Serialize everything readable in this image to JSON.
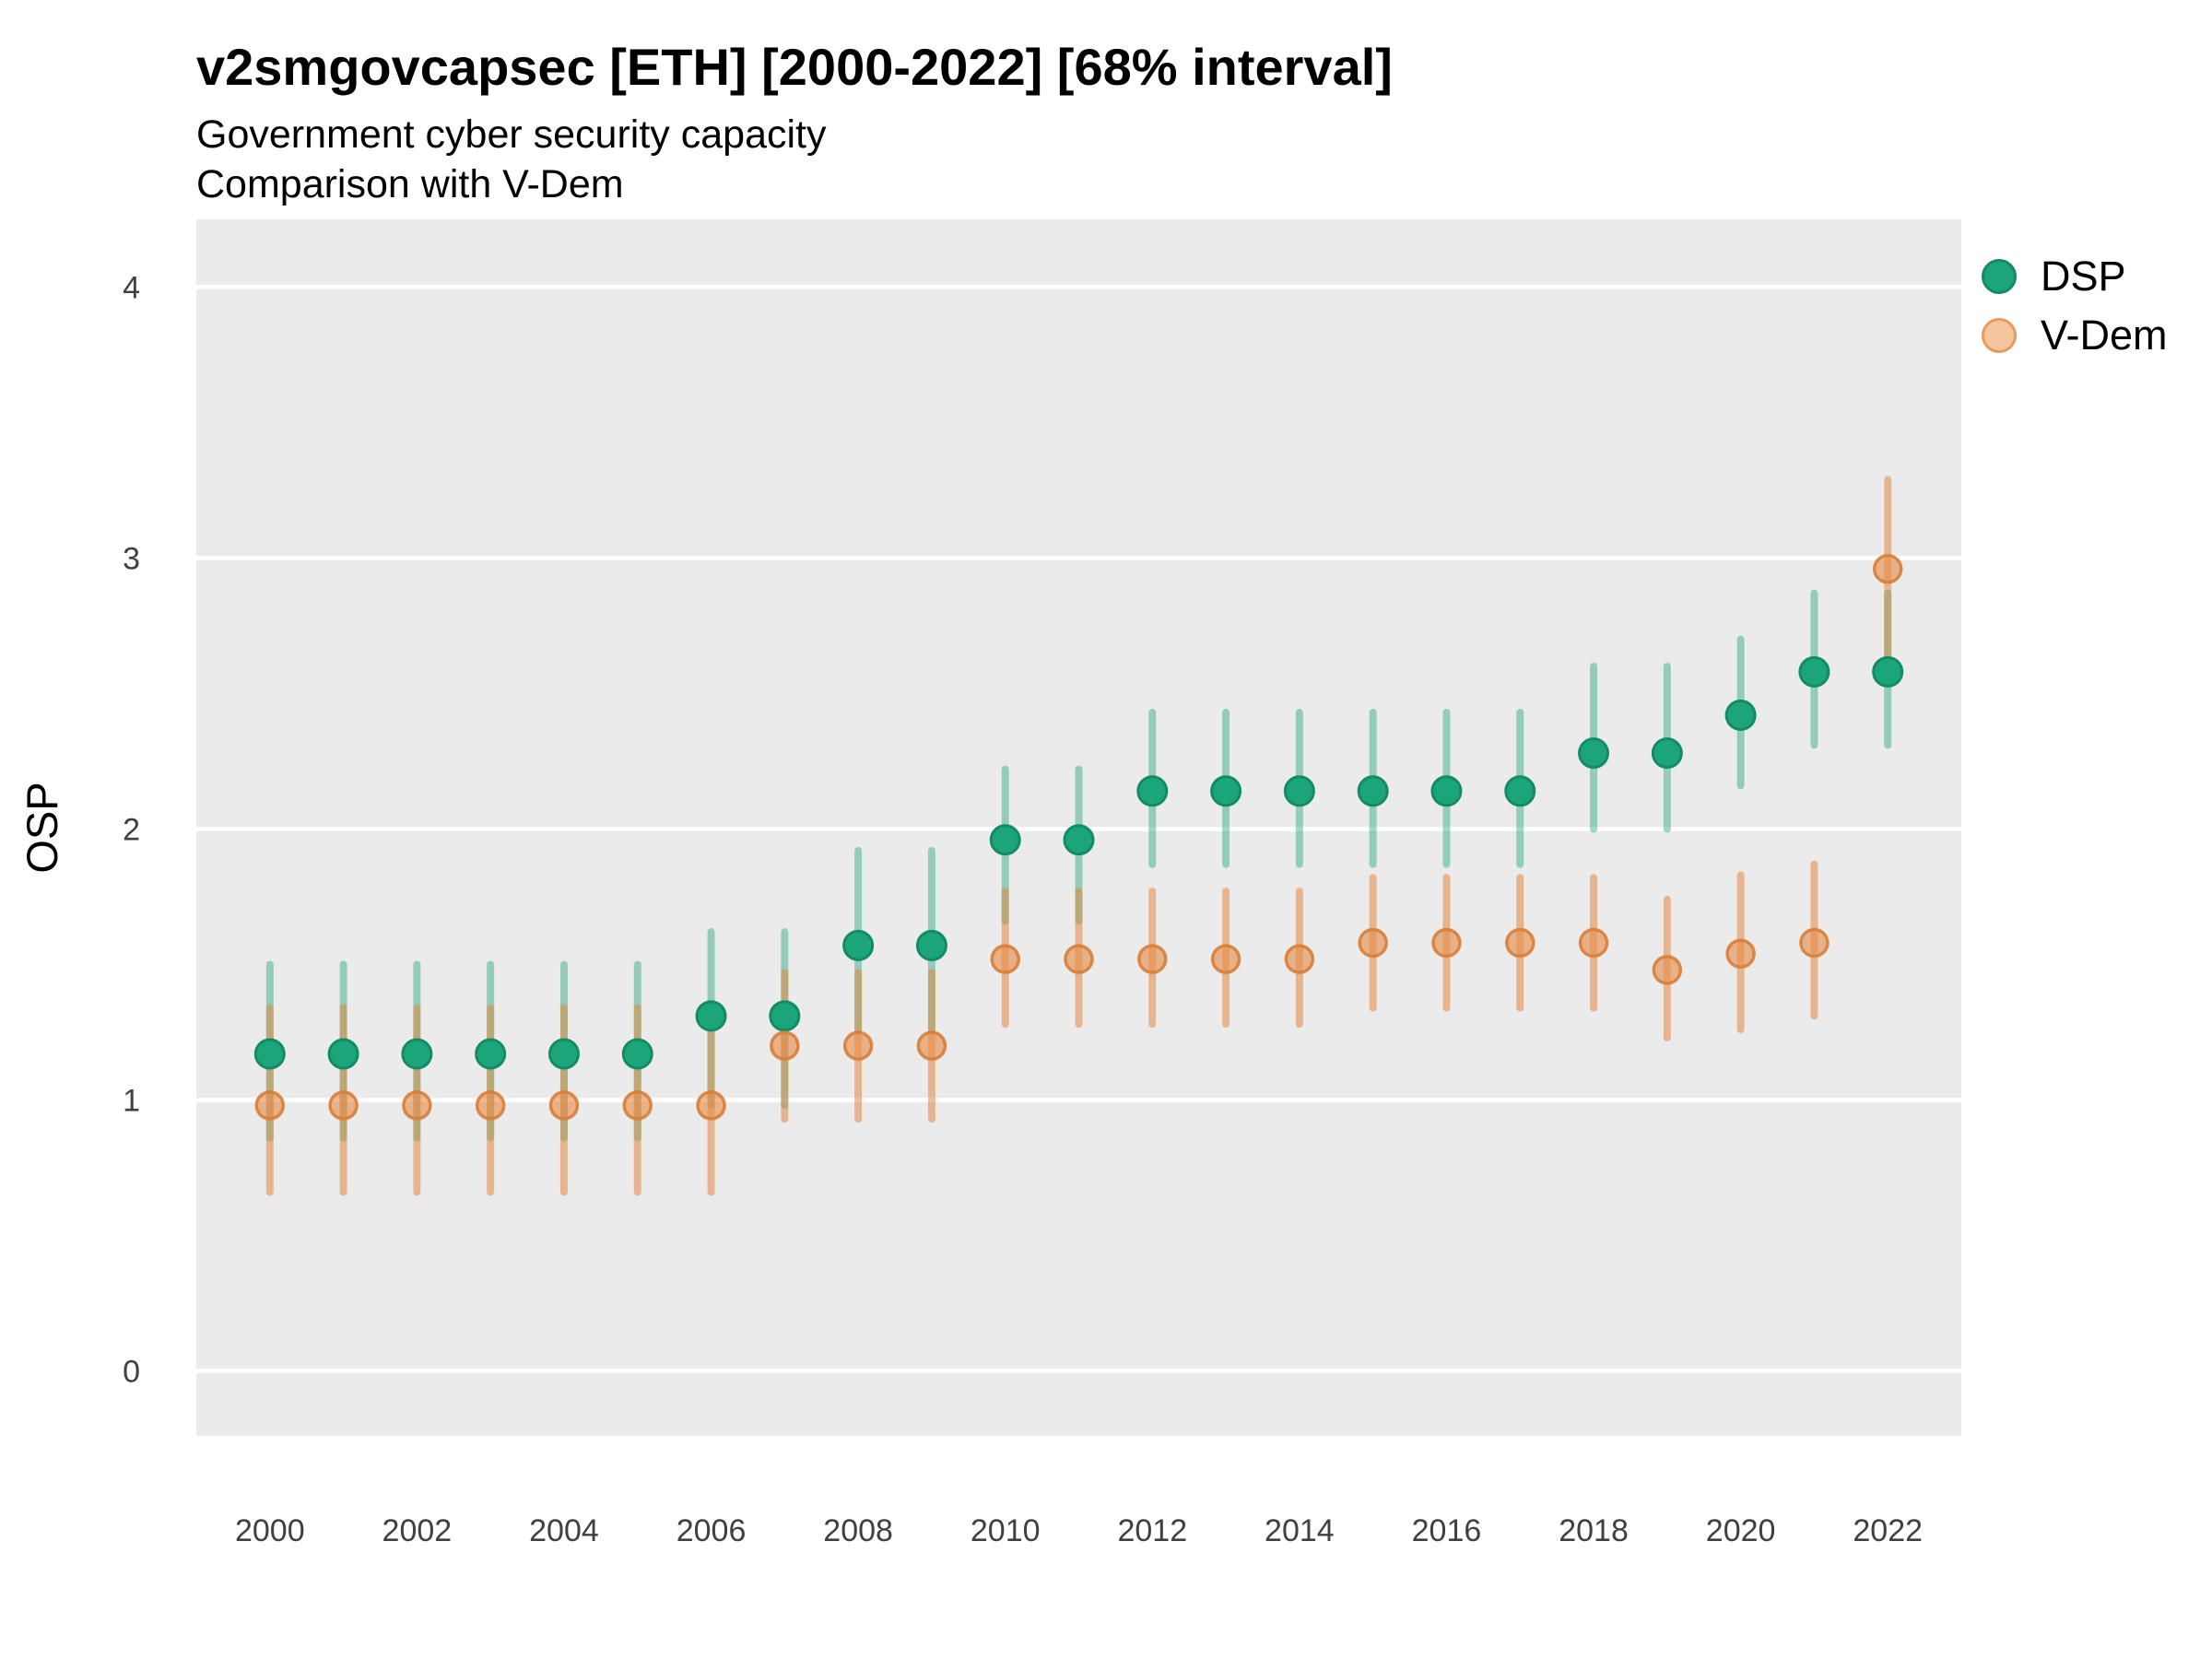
{
  "header": {
    "title": "v2smgovcapsec [ETH] [2000-2022] [68% interval]",
    "subtitle_line1": "Government cyber security capacity",
    "subtitle_line2": "Comparison with V-Dem"
  },
  "chart_data": {
    "type": "scatter",
    "title": "v2smgovcapsec [ETH] [2000-2022] [68% interval]",
    "subtitle": "Government cyber security capacity / Comparison with V-Dem",
    "xlabel": "",
    "ylabel": "OSP",
    "interval": "68% interval",
    "x": [
      2000,
      2001,
      2002,
      2003,
      2004,
      2005,
      2006,
      2007,
      2008,
      2009,
      2010,
      2011,
      2012,
      2013,
      2014,
      2015,
      2016,
      2017,
      2018,
      2019,
      2020,
      2021,
      2022
    ],
    "xticks": [
      2000,
      2002,
      2004,
      2006,
      2008,
      2010,
      2012,
      2014,
      2016,
      2018,
      2020,
      2022
    ],
    "yticks": [
      0,
      1,
      2,
      3,
      4
    ],
    "xlim": [
      1999,
      2023
    ],
    "ylim": [
      -0.24,
      4.25
    ],
    "grid": "major-horizontal-white-on-grey",
    "legend_position": "right-top",
    "series": [
      {
        "name": "DSP",
        "values": [
          1.17,
          1.17,
          1.17,
          1.17,
          1.17,
          1.17,
          1.31,
          1.31,
          1.57,
          1.57,
          1.96,
          1.96,
          2.14,
          2.14,
          2.14,
          2.14,
          2.14,
          2.14,
          2.28,
          2.28,
          2.42,
          2.58,
          2.58
        ],
        "lo": [
          0.86,
          0.86,
          0.86,
          0.86,
          0.86,
          0.86,
          0.98,
          0.98,
          1.26,
          1.26,
          1.66,
          1.66,
          1.87,
          1.87,
          1.87,
          1.87,
          1.87,
          1.87,
          2.0,
          2.0,
          2.16,
          2.31,
          2.31
        ],
        "hi": [
          1.5,
          1.5,
          1.5,
          1.5,
          1.5,
          1.5,
          1.62,
          1.62,
          1.92,
          1.92,
          2.22,
          2.22,
          2.43,
          2.43,
          2.43,
          2.43,
          2.43,
          2.43,
          2.6,
          2.6,
          2.7,
          2.87,
          2.87
        ]
      },
      {
        "name": "V-Dem",
        "values": [
          0.98,
          0.98,
          0.98,
          0.98,
          0.98,
          0.98,
          0.98,
          1.2,
          1.2,
          1.2,
          1.52,
          1.52,
          1.52,
          1.52,
          1.52,
          1.58,
          1.58,
          1.58,
          1.58,
          1.48,
          1.54,
          1.58,
          2.96
        ],
        "lo": [
          0.66,
          0.66,
          0.66,
          0.66,
          0.66,
          0.66,
          0.66,
          0.93,
          0.93,
          0.93,
          1.28,
          1.28,
          1.28,
          1.28,
          1.28,
          1.34,
          1.34,
          1.34,
          1.34,
          1.23,
          1.26,
          1.31,
          2.63
        ],
        "hi": [
          1.34,
          1.34,
          1.34,
          1.34,
          1.34,
          1.34,
          1.34,
          1.47,
          1.47,
          1.47,
          1.77,
          1.77,
          1.77,
          1.77,
          1.77,
          1.82,
          1.82,
          1.82,
          1.82,
          1.74,
          1.83,
          1.87,
          3.29
        ]
      }
    ],
    "colors": {
      "panel_bg": "#ebebeb",
      "gridline": "#ffffff",
      "dsp_point": "#1ca47a",
      "dsp_point_stroke": "#128b66",
      "dsp_band": "rgba(26,163,115,0.42)",
      "vdem_point_fill": "rgba(230,140,75,0.62)",
      "vdem_point_stroke": "rgba(216,126,56,0.9)",
      "vdem_band": "rgba(226,132,60,0.52)",
      "tick_text": "#404040",
      "text": "#000000"
    }
  }
}
